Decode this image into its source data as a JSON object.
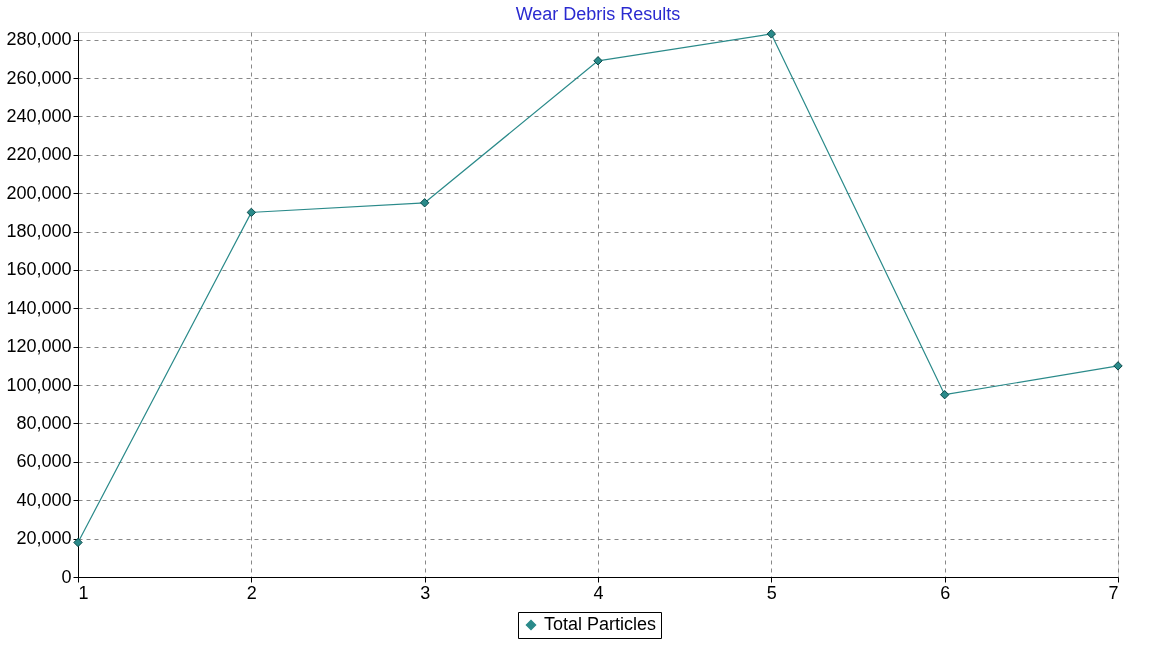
{
  "chart_data": {
    "type": "line",
    "title": "Wear Debris Results",
    "x": [
      1,
      2,
      3,
      4,
      5,
      6,
      7
    ],
    "series": [
      {
        "name": "Total Particles",
        "color": "#2a8a8a",
        "values": [
          18000,
          190000,
          195000,
          269000,
          283000,
          95000,
          110000
        ]
      }
    ],
    "xlim": [
      1,
      7
    ],
    "xticks": [
      1,
      2,
      3,
      4,
      5,
      6,
      7
    ],
    "ylim": [
      0,
      284000
    ],
    "yticks": [
      0,
      {
        "value": 20000,
        "label": "20,000"
      },
      {
        "value": 40000,
        "label": "40,000"
      },
      {
        "value": 60000,
        "label": "60,000"
      },
      {
        "value": 80000,
        "label": "80,000"
      },
      {
        "value": 100000,
        "label": "100,000"
      },
      {
        "value": 120000,
        "label": "120,000"
      },
      {
        "value": 140000,
        "label": "140,000"
      },
      {
        "value": 160000,
        "label": "160,000"
      },
      {
        "value": 180000,
        "label": "180,000"
      },
      {
        "value": 200000,
        "label": "200,000"
      },
      {
        "value": 220000,
        "label": "220,000"
      },
      {
        "value": 240000,
        "label": "240,000"
      },
      {
        "value": 260000,
        "label": "260,000"
      },
      {
        "value": 280000,
        "label": "280,000"
      }
    ],
    "grid": true,
    "legend": "bottom",
    "marker": "diamond",
    "line_style": "solid"
  }
}
